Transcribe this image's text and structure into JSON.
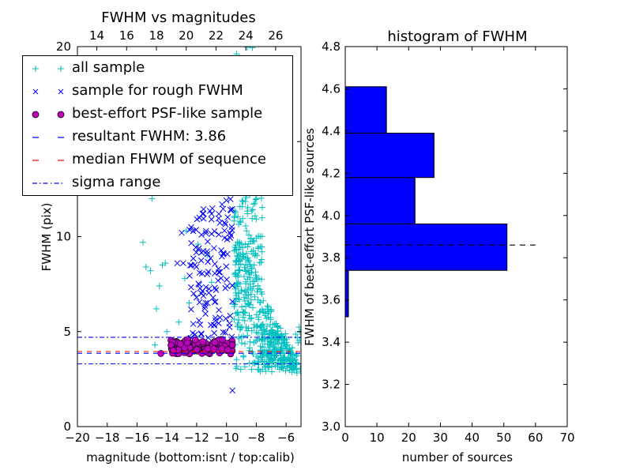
{
  "colors": {
    "all": "#00bfbf",
    "rough": "#0000ff",
    "psf": "#bf00bf",
    "result": "#0000ff",
    "median": "#ff0000",
    "sigma": "#0000ff",
    "hist": "#0000ff"
  },
  "chart_data": [
    {
      "type": "scatter",
      "title": "FWHM vs magnitudes",
      "xlabel": "magnitude (bottom:isnt / top:calib)",
      "ylabel": "FWHM (pix)",
      "xlim": [
        -20,
        -5
      ],
      "ylim": [
        0,
        20
      ],
      "x_ticks": [
        "−20",
        "−18",
        "−16",
        "−14",
        "−12",
        "−10",
        "−8",
        "−6"
      ],
      "x_tick_values": [
        -20,
        -18,
        -16,
        -14,
        -12,
        -10,
        -8,
        -6
      ],
      "top_ticks": [
        "14",
        "16",
        "18",
        "20",
        "22",
        "24",
        "26"
      ],
      "top_tick_values": [
        -18.7,
        -16.7,
        -14.7,
        -12.7,
        -10.7,
        -8.7,
        -6.7
      ],
      "y_ticks": [
        "0",
        "5",
        "10",
        "15",
        "20"
      ],
      "y_tick_values": [
        0,
        5,
        10,
        15,
        20
      ],
      "legend": {
        "placement": "upper-left",
        "entries": [
          {
            "label": "all sample",
            "marker": "plus",
            "color": "#00bfbf"
          },
          {
            "label": "sample for rough FWHM",
            "marker": "x",
            "color": "#0000ff"
          },
          {
            "label": "best-effort PSF-like sample",
            "marker": "circle",
            "color": "#bf00bf"
          },
          {
            "label": "resultant FWHM: 3.86",
            "marker": "dashed",
            "color": "#0000ff"
          },
          {
            "label": "median FHWM of sequence",
            "marker": "dashed",
            "color": "#ff0000"
          },
          {
            "label": "sigma range",
            "marker": "dashdot",
            "color": "#0000ff"
          }
        ]
      },
      "lines": [
        {
          "name": "resultant FWHM",
          "y": 3.86,
          "style": "dashed",
          "color": "#0000ff"
        },
        {
          "name": "median FHWM of sequence",
          "y": 3.95,
          "style": "dashed",
          "color": "#ff0000"
        },
        {
          "name": "sigma range upper",
          "y": 4.7,
          "style": "dashdot",
          "color": "#0000ff"
        },
        {
          "name": "sigma range lower",
          "y": 3.3,
          "style": "dashdot",
          "color": "#0000ff"
        }
      ],
      "series": [
        {
          "name": "all sample",
          "color": "#00bfbf",
          "marker": "plus",
          "clusters": [
            {
              "x": [
                -9.5,
                -5.3
              ],
              "y": [
                3.0,
                10.5
              ],
              "n": 320,
              "shape": "tail"
            },
            {
              "x": [
                -9.5,
                -7.6
              ],
              "y": [
                6.0,
                13.5
              ],
              "n": 150,
              "shape": "box"
            },
            {
              "x": [
                -9.6,
                -7.8
              ],
              "y": [
                13.0,
                20.0
              ],
              "n": 45,
              "shape": "box"
            },
            {
              "x": [
                -8.0,
                -5.0
              ],
              "y": [
                2.8,
                5.5
              ],
              "n": 110,
              "shape": "box"
            }
          ],
          "points": [
            [
              -15.6,
              9.7
            ],
            [
              -15.4,
              8.4
            ],
            [
              -15.1,
              8.2
            ],
            [
              -14.7,
              6.2
            ],
            [
              -14.5,
              7.4
            ],
            [
              -14.3,
              8.5
            ],
            [
              -14.1,
              8.6
            ],
            [
              -14.0,
              5.0
            ],
            [
              -12.7,
              10.3
            ],
            [
              -15.0,
              12.0
            ],
            [
              -12.8,
              7.8
            ],
            [
              -13.2,
              5.5
            ],
            [
              -11.3,
              9.0
            ],
            [
              -11.0,
              7.6
            ],
            [
              -12.5,
              6.5
            ],
            [
              -14.8,
              4.3
            ],
            [
              -11.9,
              9.6
            ]
          ]
        },
        {
          "name": "sample for rough FWHM",
          "color": "#0000ff",
          "marker": "x",
          "clusters": [
            {
              "x": [
                -12.5,
                -9.6
              ],
              "y": [
                4.6,
                11.5
              ],
              "n": 120,
              "shape": "box"
            },
            {
              "x": [
                -10.3,
                -9.6
              ],
              "y": [
                10.5,
                16.5
              ],
              "n": 40,
              "shape": "box"
            }
          ],
          "points": [
            [
              -13.0,
              10.2
            ],
            [
              -12.9,
              8.6
            ],
            [
              -13.3,
              8.6
            ],
            [
              -11.6,
              11.2
            ],
            [
              -11.8,
              8.1
            ],
            [
              -12.2,
              7.0
            ],
            [
              -9.6,
              1.9
            ]
          ]
        },
        {
          "name": "best-effort PSF-like sample",
          "color": "#bf00bf",
          "marker": "circle",
          "clusters": [
            {
              "x": [
                -13.8,
                -9.6
              ],
              "y": [
                3.8,
                4.6
              ],
              "n": 130,
              "shape": "box"
            }
          ],
          "points": [
            [
              -14.4,
              3.85
            ]
          ]
        }
      ]
    },
    {
      "type": "bar",
      "orientation": "horizontal",
      "title": "histogram of FWHM",
      "xlabel": "number of sources",
      "ylabel": "FWHM of best-effort PSF-like sources",
      "xlim": [
        0,
        70
      ],
      "ylim": [
        3.0,
        4.8
      ],
      "x_ticks": [
        "0",
        "10",
        "20",
        "30",
        "40",
        "50",
        "60",
        "70"
      ],
      "x_tick_values": [
        0,
        10,
        20,
        30,
        40,
        50,
        60,
        70
      ],
      "y_ticks": [
        "3.0",
        "3.2",
        "3.4",
        "3.6",
        "3.8",
        "4.0",
        "4.2",
        "4.4",
        "4.6",
        "4.8"
      ],
      "y_tick_values": [
        3.0,
        3.2,
        3.4,
        3.6,
        3.8,
        4.0,
        4.2,
        4.4,
        4.6,
        4.8
      ],
      "bins": [
        {
          "y0": 3.52,
          "y1": 3.74,
          "count": 1
        },
        {
          "y0": 3.74,
          "y1": 3.96,
          "count": 51
        },
        {
          "y0": 3.96,
          "y1": 4.18,
          "count": 22
        },
        {
          "y0": 4.18,
          "y1": 4.39,
          "count": 28
        },
        {
          "y0": 4.39,
          "y1": 4.61,
          "count": 13
        }
      ],
      "lines": [
        {
          "name": "resultant FWHM",
          "y": 3.86,
          "x_range": [
            0,
            60
          ],
          "style": "dashed",
          "color": "#000000"
        }
      ]
    }
  ]
}
